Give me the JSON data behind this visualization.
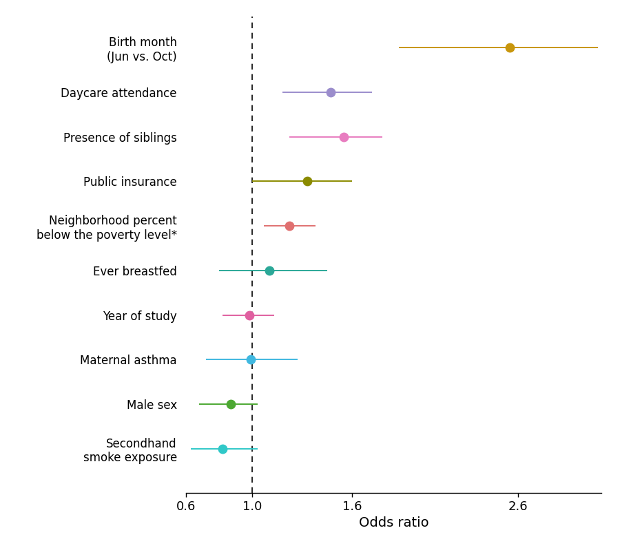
{
  "items": [
    {
      "label": "Birth month\n(Jun vs. Oct)",
      "or": 2.55,
      "ci_low": 1.88,
      "ci_high": 3.08,
      "color": "#c8960c"
    },
    {
      "label": "Daycare attendance",
      "or": 1.47,
      "ci_low": 1.18,
      "ci_high": 1.72,
      "color": "#9b8dcc"
    },
    {
      "label": "Presence of siblings",
      "or": 1.55,
      "ci_low": 1.22,
      "ci_high": 1.78,
      "color": "#e87dc0"
    },
    {
      "label": "Public insurance",
      "or": 1.33,
      "ci_low": 1.0,
      "ci_high": 1.6,
      "color": "#8b8b00"
    },
    {
      "label": "Neighborhood percent\nbelow the poverty level*",
      "or": 1.22,
      "ci_low": 1.07,
      "ci_high": 1.38,
      "color": "#e07070"
    },
    {
      "label": "Ever breastfed",
      "or": 1.1,
      "ci_low": 0.8,
      "ci_high": 1.45,
      "color": "#2ba898"
    },
    {
      "label": "Year of study",
      "or": 0.98,
      "ci_low": 0.82,
      "ci_high": 1.13,
      "color": "#e060a0"
    },
    {
      "label": "Maternal asthma",
      "or": 0.99,
      "ci_low": 0.72,
      "ci_high": 1.27,
      "color": "#40b8e0"
    },
    {
      "label": "Male sex",
      "or": 0.87,
      "ci_low": 0.68,
      "ci_high": 1.03,
      "color": "#4ca832"
    },
    {
      "label": "Secondhand\nsmoke exposure",
      "or": 0.82,
      "ci_low": 0.63,
      "ci_high": 1.03,
      "color": "#30c8c8"
    }
  ],
  "xlabel": "Odds ratio",
  "xlim": [
    0.6,
    3.1
  ],
  "xticks": [
    0.6,
    1.0,
    1.6,
    2.6
  ],
  "xtick_labels": [
    "0.6",
    "1.0",
    "1.6",
    "2.6"
  ],
  "vline_x": 1.0,
  "background_color": "#ffffff",
  "marker_size": 9,
  "line_width": 1.4,
  "label_fontsize": 12,
  "xlabel_fontsize": 14,
  "xtick_fontsize": 13
}
